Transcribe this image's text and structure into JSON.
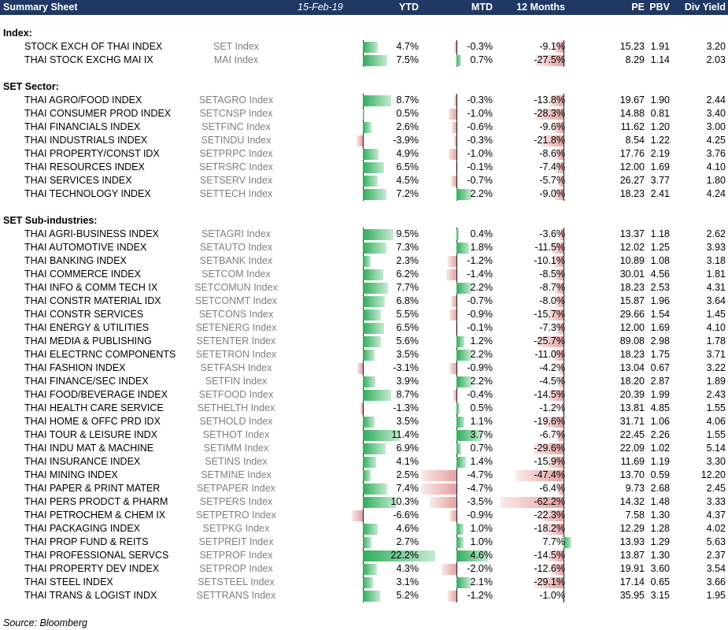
{
  "header": {
    "title": "Summary Sheet",
    "date": "15-Feb-19",
    "ytd": "YTD",
    "mtd": "MTD",
    "m12": "12 Months",
    "pe": "PE",
    "pbv": "PBV",
    "dy": "Div Yield"
  },
  "colors": {
    "header_bg": "#1f3864",
    "positive": "#2eae5a",
    "negative": "#e4a0a0"
  },
  "sections": [
    {
      "title": "Index:",
      "rows": [
        {
          "name": "STOCK EXCH OF THAI INDEX",
          "ticker": "SET Index",
          "ytd": 4.7,
          "mtd": -0.3,
          "m12": -9.1,
          "pe": "15.23",
          "pbv": "1.91",
          "dy": "3.20"
        },
        {
          "name": "THAI STOCK EXCHG MAI IX",
          "ticker": "MAI Index",
          "ytd": 7.5,
          "mtd": 0.7,
          "m12": -27.5,
          "pe": "8.29",
          "pbv": "1.14",
          "dy": "2.03"
        }
      ]
    },
    {
      "title": "SET Sector:",
      "rows": [
        {
          "name": "THAI AGRO/FOOD INDEX",
          "ticker": "SETAGRO Index",
          "ytd": 8.7,
          "mtd": -0.3,
          "m12": -13.8,
          "pe": "19.67",
          "pbv": "1.90",
          "dy": "2.44"
        },
        {
          "name": "THAI CONSUMER PROD INDEX",
          "ticker": "SETCNSP Index",
          "ytd": 0.5,
          "mtd": -1.0,
          "m12": -28.3,
          "pe": "14.88",
          "pbv": "0.81",
          "dy": "3.40"
        },
        {
          "name": "THAI FINANCIALS INDEX",
          "ticker": "SETFINC Index",
          "ytd": 2.6,
          "mtd": -0.6,
          "m12": -9.6,
          "pe": "11.62",
          "pbv": "1.20",
          "dy": "3.00"
        },
        {
          "name": "THAI INDUSTRIALS INDEX",
          "ticker": "SETINDU Index",
          "ytd": -3.9,
          "mtd": -0.3,
          "m12": -21.8,
          "pe": "8.54",
          "pbv": "1.22",
          "dy": "4.25"
        },
        {
          "name": "THAI PROPERTY/CONST IDX",
          "ticker": "SETPRPC Index",
          "ytd": 4.9,
          "mtd": -1.0,
          "m12": -8.6,
          "pe": "17.76",
          "pbv": "2.19",
          "dy": "3.76"
        },
        {
          "name": "THAI RESOURCES INDEX",
          "ticker": "SETRSRC Index",
          "ytd": 6.5,
          "mtd": -0.1,
          "m12": -7.4,
          "pe": "12.00",
          "pbv": "1.69",
          "dy": "4.10"
        },
        {
          "name": "THAI SERVICES INDEX",
          "ticker": "SETSERV Index",
          "ytd": 4.5,
          "mtd": -0.7,
          "m12": -5.7,
          "pe": "26.27",
          "pbv": "3.77",
          "dy": "1.80"
        },
        {
          "name": "THAI TECHNOLOGY INDEX",
          "ticker": "SETTECH Index",
          "ytd": 7.2,
          "mtd": 2.2,
          "m12": -9.0,
          "pe": "18.23",
          "pbv": "2.41",
          "dy": "4.24"
        }
      ]
    },
    {
      "title": "SET Sub-industries:",
      "rows": [
        {
          "name": "THAI AGRI-BUSINESS INDEX",
          "ticker": "SETAGRI Index",
          "ytd": 9.5,
          "mtd": 0.4,
          "m12": -3.6,
          "pe": "13.37",
          "pbv": "1.18",
          "dy": "2.62"
        },
        {
          "name": "THAI AUTOMOTIVE INDEX",
          "ticker": "SETAUTO Index",
          "ytd": 7.3,
          "mtd": 1.8,
          "m12": -11.5,
          "pe": "12.02",
          "pbv": "1.25",
          "dy": "3.93"
        },
        {
          "name": "THAI BANKING INDEX",
          "ticker": "SETBANK Index",
          "ytd": 2.3,
          "mtd": -1.2,
          "m12": -10.1,
          "pe": "10.89",
          "pbv": "1.08",
          "dy": "3.18"
        },
        {
          "name": "THAI COMMERCE INDEX",
          "ticker": "SETCOM Index",
          "ytd": 6.2,
          "mtd": -1.4,
          "m12": -8.5,
          "pe": "30.01",
          "pbv": "4.56",
          "dy": "1.81"
        },
        {
          "name": "THAI INFO & COMM TECH IX",
          "ticker": "SETCOMUN Index",
          "ytd": 7.7,
          "mtd": 2.2,
          "m12": -8.7,
          "pe": "18.23",
          "pbv": "2.53",
          "dy": "4.31"
        },
        {
          "name": "THAI CONSTR MATERIAL IDX",
          "ticker": "SETCONMT Index",
          "ytd": 6.8,
          "mtd": -0.7,
          "m12": -8.0,
          "pe": "15.87",
          "pbv": "1.96",
          "dy": "3.64"
        },
        {
          "name": "THAI CONSTR SERVICES",
          "ticker": "SETCONS Index",
          "ytd": 5.5,
          "mtd": -0.9,
          "m12": -15.7,
          "pe": "29.66",
          "pbv": "1.54",
          "dy": "1.45"
        },
        {
          "name": "THAI ENERGY & UTILITIES",
          "ticker": "SETENERG Index",
          "ytd": 6.5,
          "mtd": -0.1,
          "m12": -7.3,
          "pe": "12.00",
          "pbv": "1.69",
          "dy": "4.10"
        },
        {
          "name": "THAI MEDIA & PUBLISHING",
          "ticker": "SETENTER Index",
          "ytd": 5.6,
          "mtd": 1.2,
          "m12": -25.7,
          "pe": "89.08",
          "pbv": "2.98",
          "dy": "1.78"
        },
        {
          "name": "THAI ELECTRNC COMPONENTS",
          "ticker": "SETETRON Index",
          "ytd": 3.5,
          "mtd": 2.2,
          "m12": -11.0,
          "pe": "18.23",
          "pbv": "1.75",
          "dy": "3.71"
        },
        {
          "name": "THAI FASHION INDEX",
          "ticker": "SETFASH Index",
          "ytd": -3.1,
          "mtd": -0.9,
          "m12": -4.2,
          "pe": "13.04",
          "pbv": "0.67",
          "dy": "3.22"
        },
        {
          "name": "THAI FINANCE/SEC INDEX",
          "ticker": "SETFIN Index",
          "ytd": 3.9,
          "mtd": 2.2,
          "m12": -4.5,
          "pe": "18.20",
          "pbv": "2.87",
          "dy": "1.89"
        },
        {
          "name": "THAI FOOD/BEVERAGE INDEX",
          "ticker": "SETFOOD Index",
          "ytd": 8.7,
          "mtd": -0.4,
          "m12": -14.5,
          "pe": "20.39",
          "pbv": "1.99",
          "dy": "2.43"
        },
        {
          "name": "THAI HEALTH CARE SERVICE",
          "ticker": "SETHELTH Index",
          "ytd": -1.3,
          "mtd": 0.5,
          "m12": -1.2,
          "pe": "13.81",
          "pbv": "4.85",
          "dy": "1.55"
        },
        {
          "name": "THAI HOME & OFFC PRD IDX",
          "ticker": "SETHOLD Index",
          "ytd": 3.5,
          "mtd": 1.1,
          "m12": -19.6,
          "pe": "31.71",
          "pbv": "1.06",
          "dy": "4.06"
        },
        {
          "name": "THAI TOUR & LEISURE INDX",
          "ticker": "SETHOT Index",
          "ytd": 11.4,
          "mtd": 3.7,
          "m12": -6.7,
          "pe": "22.45",
          "pbv": "2.26",
          "dy": "1.55"
        },
        {
          "name": "THAI INDU MAT & MACHINE",
          "ticker": "SETIMM Index",
          "ytd": 6.9,
          "mtd": 0.7,
          "m12": -29.6,
          "pe": "22.09",
          "pbv": "1.02",
          "dy": "5.14"
        },
        {
          "name": "THAI INSURANCE INDEX",
          "ticker": "SETINS Index",
          "ytd": 4.1,
          "mtd": 1.4,
          "m12": -15.9,
          "pe": "11.69",
          "pbv": "1.19",
          "dy": "3.30"
        },
        {
          "name": "THAI MINING INDEX",
          "ticker": "SETMINE Index",
          "ytd": 2.5,
          "mtd": -4.7,
          "m12": -47.4,
          "pe": "13.70",
          "pbv": "0.59",
          "dy": "12.20"
        },
        {
          "name": "THAI PAPER & PRINT MATER",
          "ticker": "SETPAPER Index",
          "ytd": 7.4,
          "mtd": -4.7,
          "m12": -6.4,
          "pe": "9.73",
          "pbv": "2.68",
          "dy": "2.45"
        },
        {
          "name": "THAI PERS PRODCT & PHARM",
          "ticker": "SETPERS Index",
          "ytd": 10.3,
          "mtd": -3.5,
          "m12": -62.2,
          "pe": "14.32",
          "pbv": "1.48",
          "dy": "3.33"
        },
        {
          "name": "THAI PETROCHEM & CHEM IX",
          "ticker": "SETPETRO Index",
          "ytd": -6.6,
          "mtd": -0.9,
          "m12": -22.3,
          "pe": "7.58",
          "pbv": "1.30",
          "dy": "4.37"
        },
        {
          "name": "THAI PACKAGING INDEX",
          "ticker": "SETPKG Index",
          "ytd": 4.6,
          "mtd": 1.0,
          "m12": -18.2,
          "pe": "12.29",
          "pbv": "1.28",
          "dy": "4.02"
        },
        {
          "name": "THAI PROP FUND & REITS",
          "ticker": "SETPREIT Index",
          "ytd": 2.7,
          "mtd": 1.0,
          "m12": 7.7,
          "pe": "13.93",
          "pbv": "1.29",
          "dy": "5.63"
        },
        {
          "name": "THAI PROFESSIONAL SERVCS",
          "ticker": "SETPROF Index",
          "ytd": 22.2,
          "mtd": 4.6,
          "m12": -14.5,
          "pe": "13.87",
          "pbv": "1.30",
          "dy": "2.37"
        },
        {
          "name": "THAI PROPERTY DEV INDEX",
          "ticker": "SETPROP Index",
          "ytd": 4.3,
          "mtd": -2.0,
          "m12": -12.6,
          "pe": "19.91",
          "pbv": "3.60",
          "dy": "3.54"
        },
        {
          "name": "THAI STEEL INDEX",
          "ticker": "SETSTEEL Index",
          "ytd": 3.1,
          "mtd": 2.1,
          "m12": -29.1,
          "pe": "17.14",
          "pbv": "0.65",
          "dy": "3.66"
        },
        {
          "name": "THAI TRANS & LOGIST INDX",
          "ticker": "SETTRANS Index",
          "ytd": 5.2,
          "mtd": -1.2,
          "m12": -1.0,
          "pe": "35.95",
          "pbv": "3.15",
          "dy": "1.95"
        }
      ]
    }
  ],
  "source": "Source: Bloomberg"
}
